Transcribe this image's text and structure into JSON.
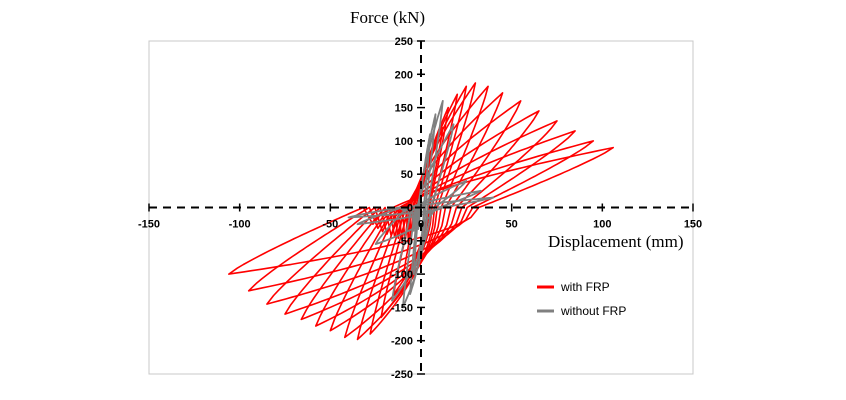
{
  "chart_data": {
    "type": "line",
    "title": "",
    "xlabel": "Displacement (mm)",
    "ylabel": "Force (kN)",
    "xlim": [
      -150,
      150
    ],
    "ylim": [
      -250,
      250
    ],
    "xticks": [
      -150,
      -100,
      -50,
      0,
      50,
      100,
      150
    ],
    "yticks": [
      -250,
      -200,
      -150,
      -100,
      -50,
      0,
      50,
      100,
      150,
      200,
      250
    ],
    "xtick_labels": [
      "-150",
      "-100",
      "-50",
      "0",
      "50",
      "100",
      "150"
    ],
    "ytick_labels": [
      "-250",
      "-200",
      "-150",
      "-100",
      "-50",
      "0",
      "50",
      "100",
      "150",
      "200",
      "250"
    ],
    "grid": false,
    "legend_position": "bottom-right",
    "series": [
      {
        "name": "with FRP",
        "color": "#ff0000",
        "style": "hysteresis",
        "cycles": [
          {
            "dpos": 12,
            "fpos": 120,
            "dneg": -10,
            "fneg": -110
          },
          {
            "dpos": 15,
            "fpos": 150,
            "dneg": -15,
            "fneg": -130
          },
          {
            "dpos": 20,
            "fpos": 170,
            "dneg": -22,
            "fneg": -165
          },
          {
            "dpos": 25,
            "fpos": 182,
            "dneg": -28,
            "fneg": -190
          },
          {
            "dpos": 30,
            "fpos": 187,
            "dneg": -35,
            "fneg": -198
          },
          {
            "dpos": 37,
            "fpos": 182,
            "dneg": -42,
            "fneg": -195
          },
          {
            "dpos": 45,
            "fpos": 172,
            "dneg": -50,
            "fneg": -185
          },
          {
            "dpos": 55,
            "fpos": 160,
            "dneg": -58,
            "fneg": -178
          },
          {
            "dpos": 65,
            "fpos": 145,
            "dneg": -66,
            "fneg": -168
          },
          {
            "dpos": 75,
            "fpos": 130,
            "dneg": -75,
            "fneg": -160
          },
          {
            "dpos": 85,
            "fpos": 115,
            "dneg": -85,
            "fneg": -145
          },
          {
            "dpos": 95,
            "fpos": 100,
            "dneg": -95,
            "fneg": -125
          },
          {
            "dpos": 106,
            "fpos": 90,
            "dneg": -106,
            "fneg": -100
          }
        ]
      },
      {
        "name": "without FRP",
        "color": "#808080",
        "style": "hysteresis",
        "cycles": [
          {
            "dpos": 5,
            "fpos": 110,
            "dneg": -4,
            "fneg": -100
          },
          {
            "dpos": 8,
            "fpos": 140,
            "dneg": -6,
            "fneg": -130
          },
          {
            "dpos": 12,
            "fpos": 160,
            "dneg": -10,
            "fneg": -150
          },
          {
            "dpos": 18,
            "fpos": 125,
            "dneg": -16,
            "fneg": -140
          },
          {
            "dpos": 25,
            "fpos": 40,
            "dneg": -25,
            "fneg": -55
          },
          {
            "dpos": 33,
            "fpos": 25,
            "dneg": -35,
            "fneg": -25
          },
          {
            "dpos": 40,
            "fpos": 15,
            "dneg": -40,
            "fneg": -15
          }
        ]
      }
    ]
  }
}
